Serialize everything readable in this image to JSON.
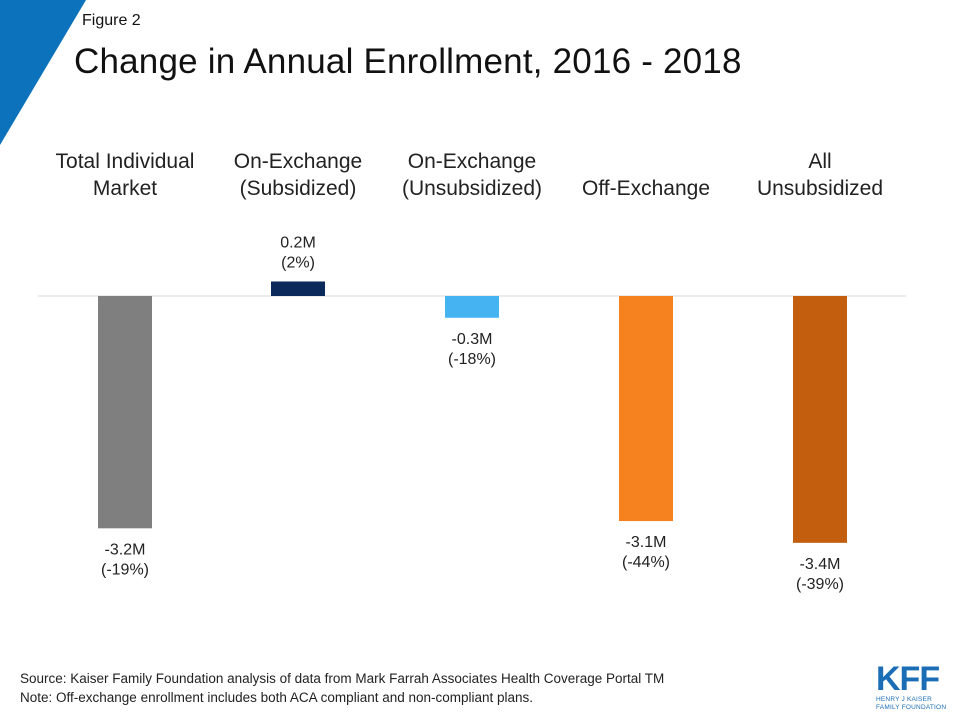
{
  "figure_label": "Figure 2",
  "title": "Change in Annual Enrollment, 2016 - 2018",
  "colors": {
    "corner_accent": "#0b72bb"
  },
  "chart_data": {
    "type": "bar",
    "title": "Change in Annual Enrollment, 2016 - 2018",
    "xlabel": "",
    "ylabel": "",
    "ylim": [
      -3.4,
      0.2
    ],
    "grid": false,
    "legend": "none",
    "categories": [
      [
        "Total Individual",
        "Market"
      ],
      [
        "On-Exchange",
        "(Subsidized)"
      ],
      [
        "On-Exchange",
        "(Unsubsidized)"
      ],
      [
        "Off-Exchange"
      ],
      [
        "All",
        "Unsubsidized"
      ]
    ],
    "values": [
      -3.2,
      0.2,
      -0.3,
      -3.1,
      -3.4
    ],
    "value_labels": [
      "-3.2M",
      "0.2M",
      "-0.3M",
      "-3.1M",
      "-3.4M"
    ],
    "percent_labels": [
      "(-19%)",
      "(2%)",
      "(-18%)",
      "(-44%)",
      "(-39%)"
    ],
    "colors": [
      "#7f7f7f",
      "#0b2a5b",
      "#45b3f2",
      "#f5821f",
      "#c45e0f"
    ]
  },
  "source": "Source: Kaiser Family Foundation analysis of data from Mark Farrah Associates Health Coverage Portal TM",
  "note": "Note: Off-exchange enrollment includes both ACA compliant and non-compliant plans.",
  "logo": {
    "mark": "KFF",
    "line1": "HENRY J KAISER",
    "line2": "FAMILY FOUNDATION"
  }
}
